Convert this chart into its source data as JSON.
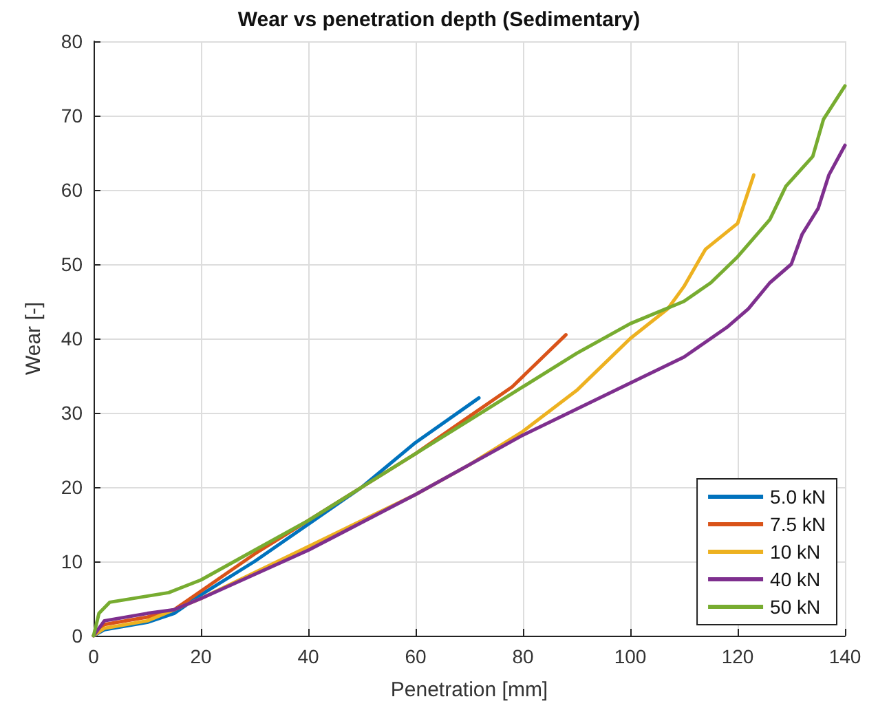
{
  "chart_data": {
    "type": "line",
    "title": "Wear vs penetration depth (Sedimentary)",
    "xlabel": "Penetration [mm]",
    "ylabel": "Wear [-]",
    "xlim": [
      0,
      140
    ],
    "xticks": [
      0,
      20,
      40,
      60,
      80,
      100,
      120,
      140
    ],
    "ylim": [
      0,
      80
    ],
    "yticks": [
      0,
      10,
      20,
      30,
      40,
      50,
      60,
      70,
      80
    ],
    "grid": true,
    "legend": "bottom right",
    "line_style": "solid",
    "marker": "none",
    "series": [
      {
        "name": "5.0 kN",
        "color": "#0072bd",
        "x": [
          0,
          2,
          10,
          15,
          20,
          30,
          40,
          50,
          60,
          71.8
        ],
        "values": [
          0,
          0.8,
          1.8,
          3,
          5.5,
          10,
          15,
          20,
          26,
          32
        ]
      },
      {
        "name": "7.5 kN",
        "color": "#d95319",
        "x": [
          0,
          2,
          10,
          15,
          20,
          30,
          40,
          50,
          60,
          70,
          78,
          88
        ],
        "values": [
          0,
          1.5,
          2.5,
          3.5,
          6,
          11,
          15.5,
          20,
          24.5,
          29.5,
          33.5,
          40.5
        ]
      },
      {
        "name": "10 kN",
        "color": "#edb120",
        "x": [
          0,
          2,
          10,
          20,
          40,
          60,
          70,
          80,
          90,
          100,
          107,
          110,
          114,
          120,
          123
        ],
        "values": [
          0,
          1,
          2,
          5,
          12,
          19,
          23,
          27.5,
          33,
          40,
          44,
          47,
          52,
          55.5,
          62
        ]
      },
      {
        "name": "40 kN",
        "color": "#7e2f8e",
        "x": [
          0,
          2,
          10,
          15,
          20,
          40,
          60,
          80,
          100,
          110,
          118,
          122,
          126,
          130,
          132,
          135,
          137,
          140
        ],
        "values": [
          0,
          2,
          3,
          3.5,
          5,
          11.5,
          19,
          27,
          34,
          37.5,
          41.5,
          44,
          47.5,
          50,
          54,
          57.5,
          62,
          66
        ]
      },
      {
        "name": "50 kN",
        "color": "#77ac30",
        "x": [
          0,
          1,
          3,
          14,
          20,
          30,
          40,
          50,
          60,
          70,
          80,
          90,
          100,
          110,
          115,
          120,
          126,
          129,
          134,
          136,
          140
        ],
        "values": [
          0,
          3,
          4.5,
          5.8,
          7.5,
          11.5,
          15.5,
          20,
          24.5,
          29,
          33.5,
          38,
          42,
          45,
          47.5,
          51,
          56,
          60.5,
          64.5,
          69.5,
          74
        ]
      }
    ]
  }
}
